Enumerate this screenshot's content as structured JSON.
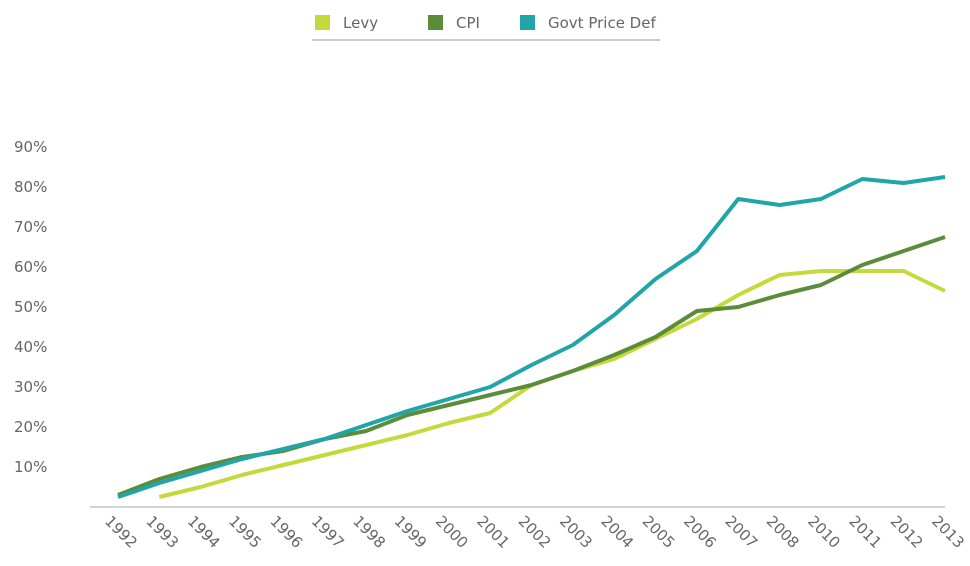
{
  "chart_data": {
    "type": "line",
    "categories": [
      "1992",
      "1993",
      "1994",
      "1995",
      "1996",
      "1997",
      "1998",
      "1999",
      "2000",
      "2001",
      "2002",
      "2003",
      "2004",
      "2005",
      "2006",
      "2007",
      "2008",
      "2010",
      "2011",
      "2012",
      "2013"
    ],
    "series": [
      {
        "name": "Levy",
        "color": "#c6d93c",
        "values": [
          null,
          2.5,
          5,
          8,
          10.5,
          13,
          15.5,
          18,
          21,
          23.5,
          30.5,
          34,
          37,
          42,
          47,
          53,
          58,
          59,
          59,
          59,
          54
        ]
      },
      {
        "name": "CPI",
        "color": "#5b8c3a",
        "values": [
          3,
          7,
          10,
          12.5,
          14,
          17,
          19,
          23,
          25.5,
          28,
          30.5,
          34,
          38,
          42.5,
          49,
          50,
          53,
          55.5,
          60.5,
          64,
          67.5
        ]
      },
      {
        "name": "Govt Price Def",
        "color": "#20a5a8",
        "values": [
          2.5,
          6,
          9,
          12,
          14.5,
          17,
          20.5,
          24,
          27,
          30,
          35.5,
          40.5,
          48,
          57,
          64,
          77,
          75.5,
          77,
          82,
          81,
          82.5
        ]
      }
    ],
    "ylim": [
      0,
      90
    ],
    "yticks": [
      {
        "value": 10,
        "label": "10%"
      },
      {
        "value": 20,
        "label": "20%"
      },
      {
        "value": 30,
        "label": "30%"
      },
      {
        "value": 40,
        "label": "40%"
      },
      {
        "value": 50,
        "label": "50%"
      },
      {
        "value": 60,
        "label": "60%"
      },
      {
        "value": 70,
        "label": "70%"
      },
      {
        "value": 80,
        "label": "80%"
      },
      {
        "value": 90,
        "label": "90%"
      }
    ]
  }
}
